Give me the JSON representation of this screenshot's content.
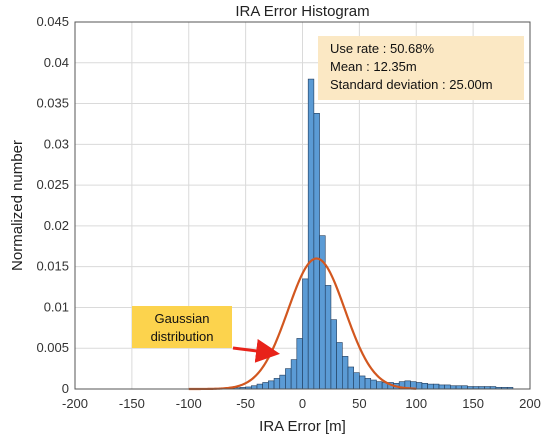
{
  "chart_data": {
    "type": "bar",
    "title": "IRA Error Histogram",
    "xlabel": "IRA Error [m]",
    "ylabel": "Normalized number",
    "xlim": [
      -200,
      200
    ],
    "ylim": [
      0,
      0.045
    ],
    "xticks": [
      "-200",
      "-150",
      "-100",
      "-50",
      "0",
      "50",
      "100",
      "150",
      "200"
    ],
    "yticks": [
      "0",
      "0.005",
      "0.01",
      "0.015",
      "0.02",
      "0.025",
      "0.03",
      "0.035",
      "0.04",
      "0.045"
    ],
    "grid": true,
    "bin_width": 5,
    "bins": [
      [
        -100,
        2e-05
      ],
      [
        -95,
        2e-05
      ],
      [
        -90,
        3e-05
      ],
      [
        -85,
        3e-05
      ],
      [
        -80,
        4e-05
      ],
      [
        -75,
        5e-05
      ],
      [
        -70,
        7e-05
      ],
      [
        -65,
        0.0001
      ],
      [
        -60,
        0.00015
      ],
      [
        -55,
        0.0002
      ],
      [
        -50,
        0.00025
      ],
      [
        -45,
        0.0004
      ],
      [
        -40,
        0.0006
      ],
      [
        -35,
        0.0008
      ],
      [
        -30,
        0.001
      ],
      [
        -25,
        0.0013
      ],
      [
        -20,
        0.0017
      ],
      [
        -15,
        0.0025
      ],
      [
        -10,
        0.0036
      ],
      [
        -5,
        0.0062
      ],
      [
        0,
        0.0135
      ],
      [
        5,
        0.038
      ],
      [
        10,
        0.0338
      ],
      [
        15,
        0.0188
      ],
      [
        20,
        0.0127
      ],
      [
        25,
        0.0085
      ],
      [
        30,
        0.0057
      ],
      [
        35,
        0.004
      ],
      [
        40,
        0.0027
      ],
      [
        45,
        0.002
      ],
      [
        50,
        0.0016
      ],
      [
        55,
        0.0013
      ],
      [
        60,
        0.0011
      ],
      [
        65,
        0.0009
      ],
      [
        70,
        0.0008
      ],
      [
        75,
        0.0008
      ],
      [
        80,
        0.0007
      ],
      [
        85,
        0.0009
      ],
      [
        90,
        0.001
      ],
      [
        95,
        0.0009
      ],
      [
        100,
        0.0008
      ],
      [
        105,
        0.0007
      ],
      [
        110,
        0.0006
      ],
      [
        115,
        0.0006
      ],
      [
        120,
        0.0005
      ],
      [
        125,
        0.0005
      ],
      [
        130,
        0.0004
      ],
      [
        135,
        0.0004
      ],
      [
        140,
        0.0004
      ],
      [
        145,
        0.0003
      ],
      [
        150,
        0.0003
      ],
      [
        155,
        0.0003
      ],
      [
        160,
        0.0003
      ],
      [
        165,
        0.0003
      ],
      [
        170,
        0.0002
      ],
      [
        175,
        0.0002
      ],
      [
        180,
        0.0002
      ]
    ],
    "gaussian": {
      "mean": 12.35,
      "std": 25.0,
      "peak": 0.016,
      "x_range": [
        -100,
        100
      ]
    },
    "stats_box": {
      "lines": [
        "Use rate : 50.68%",
        "Mean : 12.35m",
        "Standard deviation : 25.00m"
      ]
    },
    "callout": {
      "lines": [
        "Gaussian",
        "distribution"
      ],
      "arrow_to": [
        -25,
        0.0044
      ]
    }
  },
  "colors": {
    "bar_fill": "#5B9BD5",
    "bar_edge": "#1F3A5A",
    "curve": "#D2571F",
    "stats_box_bg": "#FBE8C4",
    "callout_bg": "#FCD34D",
    "arrow": "#E8231A",
    "grid": "#DADADA"
  }
}
